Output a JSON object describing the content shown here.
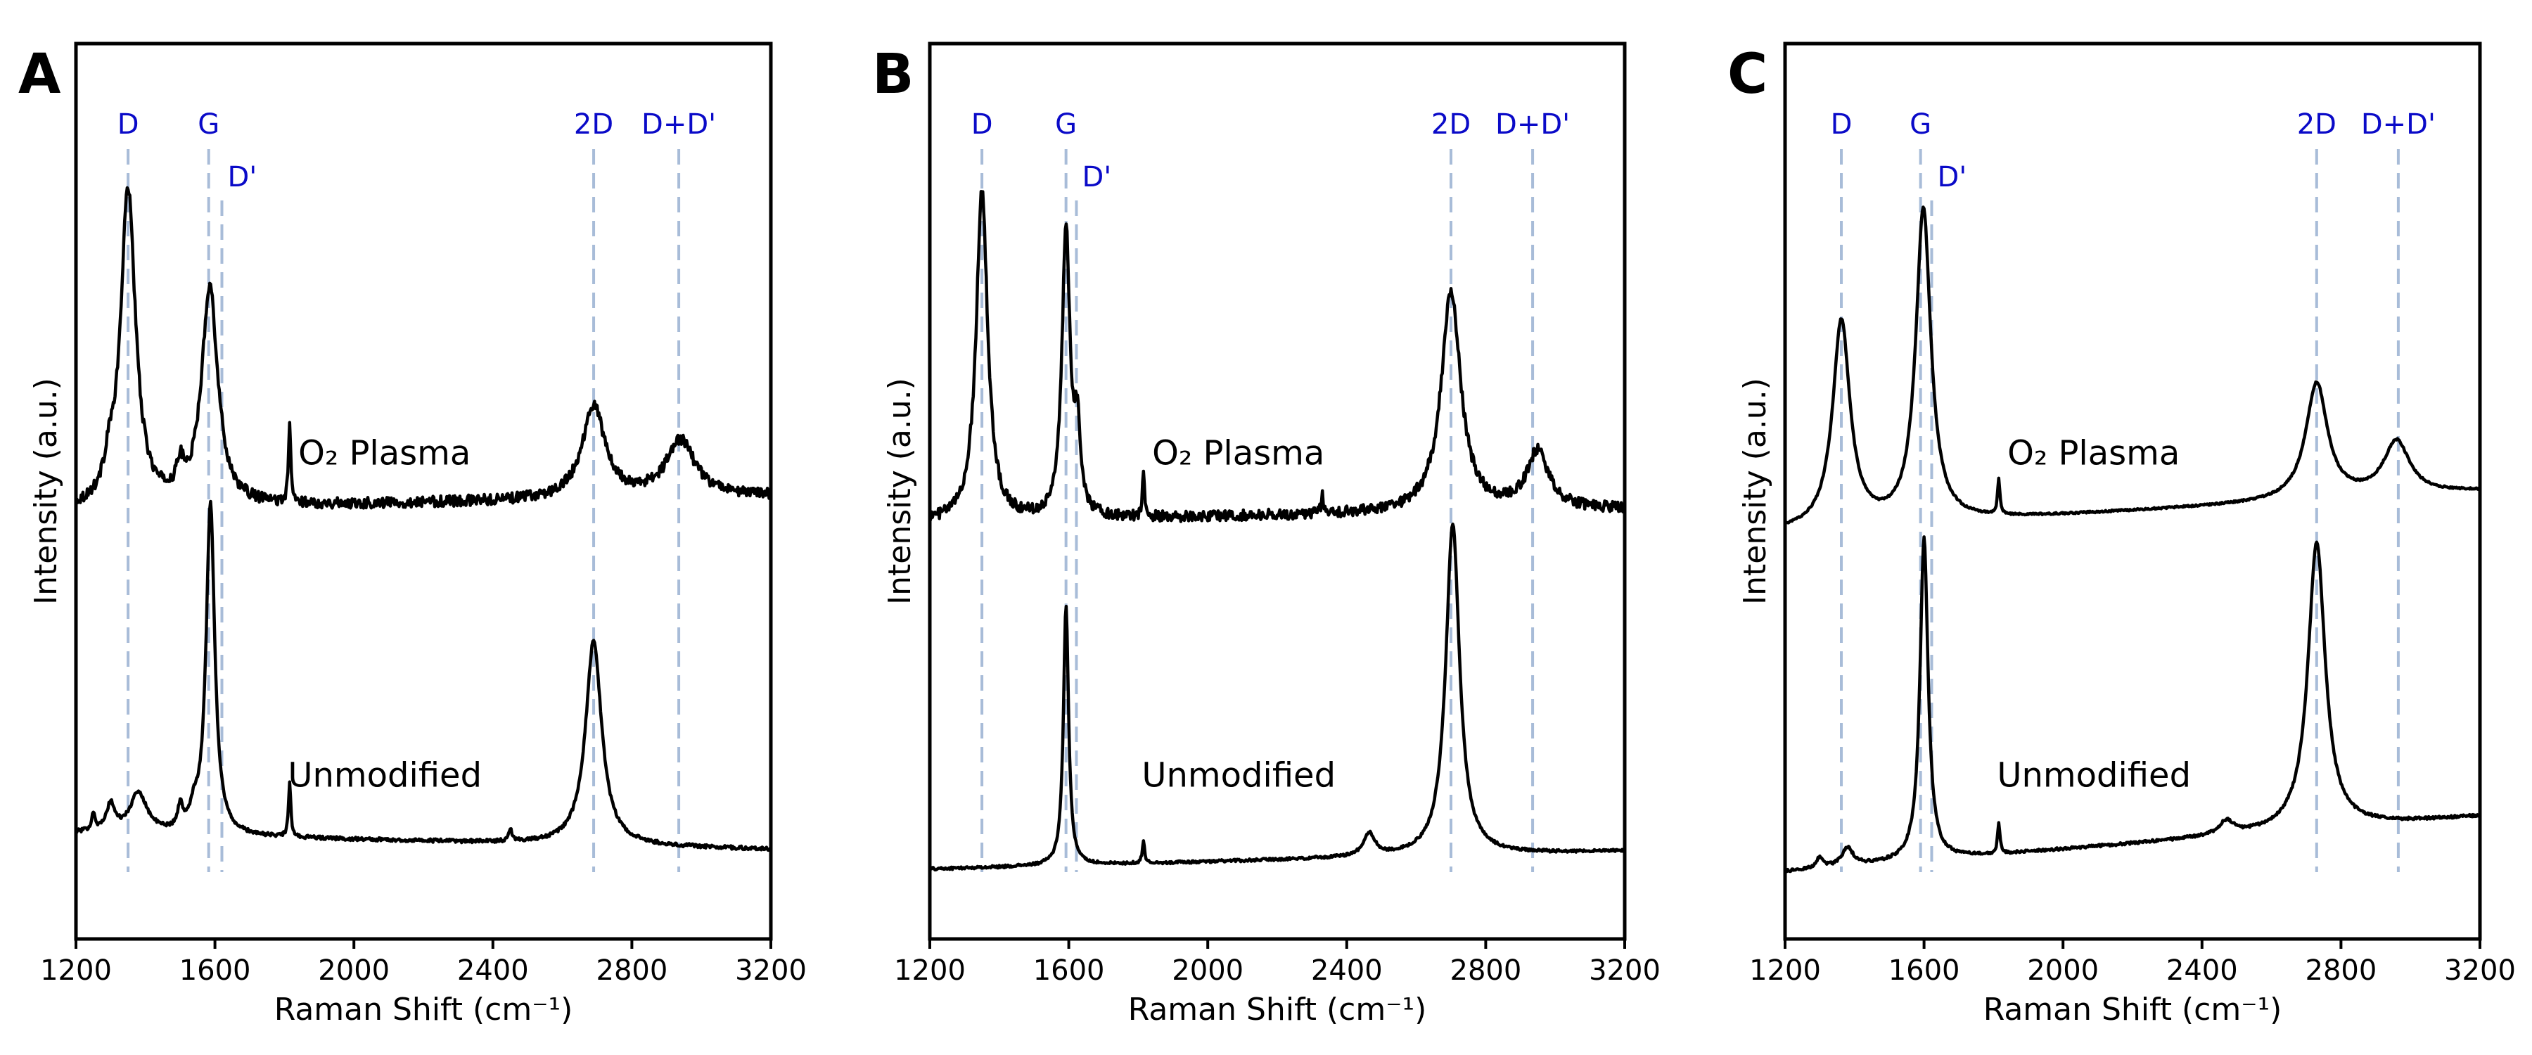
{
  "chart_data": [
    {
      "type": "line",
      "panel": "A",
      "xlabel": "Raman Shift (cm⁻¹)",
      "ylabel": "Intensity (a.u.)",
      "xlim": [
        1200,
        3200
      ],
      "xticks": [
        1200,
        1600,
        2000,
        2400,
        2800,
        3200
      ],
      "y_ticks_shown": false,
      "peak_markers": [
        {
          "name": "D",
          "x": 1350,
          "row": 1
        },
        {
          "name": "G",
          "x": 1582,
          "row": 1
        },
        {
          "name": "D'",
          "x": 1620,
          "row": 2
        },
        {
          "name": "2D",
          "x": 2690,
          "row": 1
        },
        {
          "name": "D+D'",
          "x": 2935,
          "row": 1
        }
      ],
      "series": [
        {
          "name": "O2 Plasma",
          "baseline": 0.478,
          "end": 0.495,
          "noise": 0.012,
          "peaks": [
            {
              "center": 1350,
              "width": 26,
              "height": 0.356
            },
            {
              "center": 1585,
              "width": 28,
              "height": 0.245
            },
            {
              "center": 1500,
              "width": 12,
              "height": 0.03
            },
            {
              "center": 1295,
              "width": 14,
              "height": 0.03
            },
            {
              "center": 1815,
              "width": 4,
              "height": 0.085
            },
            {
              "center": 2690,
              "width": 40,
              "height": 0.103
            },
            {
              "center": 2940,
              "width": 50,
              "height": 0.063
            }
          ]
        },
        {
          "name": "Unmodified",
          "baseline": 0.118,
          "end": 0.1,
          "noise": 0.004,
          "peaks": [
            {
              "center": 1587,
              "width": 15,
              "height": 0.37
            },
            {
              "center": 1540,
              "width": 14,
              "height": 0.02
            },
            {
              "center": 1380,
              "width": 30,
              "height": 0.045
            },
            {
              "center": 1300,
              "width": 15,
              "height": 0.03
            },
            {
              "center": 1250,
              "width": 6,
              "height": 0.02
            },
            {
              "center": 1500,
              "width": 8,
              "height": 0.025
            },
            {
              "center": 1815,
              "width": 4,
              "height": 0.06
            },
            {
              "center": 2450,
              "width": 6,
              "height": 0.014
            },
            {
              "center": 2690,
              "width": 28,
              "height": 0.228
            }
          ]
        }
      ],
      "annotations": [
        {
          "text": "O₂ Plasma",
          "x": 1840,
          "y": 0.53
        },
        {
          "text": "Unmodified",
          "x": 1810,
          "y": 0.17
        }
      ]
    },
    {
      "type": "line",
      "panel": "B",
      "xlabel": "Raman Shift (cm⁻¹)",
      "ylabel": "Intensity (a.u.)",
      "xlim": [
        1200,
        3200
      ],
      "xticks": [
        1200,
        1600,
        2000,
        2400,
        2800,
        3200
      ],
      "y_ticks_shown": false,
      "peak_markers": [
        {
          "name": "D",
          "x": 1350,
          "row": 1
        },
        {
          "name": "G",
          "x": 1592,
          "row": 1
        },
        {
          "name": "D'",
          "x": 1622,
          "row": 2
        },
        {
          "name": "2D",
          "x": 2700,
          "row": 1
        },
        {
          "name": "D+D'",
          "x": 2935,
          "row": 1
        }
      ],
      "series": [
        {
          "name": "O2 Plasma",
          "baseline": 0.465,
          "end": 0.48,
          "noise": 0.012,
          "peaks": [
            {
              "center": 1350,
              "width": 20,
              "height": 0.37
            },
            {
              "center": 1592,
              "width": 14,
              "height": 0.32
            },
            {
              "center": 1625,
              "width": 10,
              "height": 0.09
            },
            {
              "center": 1815,
              "width": 4,
              "height": 0.05
            },
            {
              "center": 2330,
              "width": 4,
              "height": 0.02
            },
            {
              "center": 2700,
              "width": 34,
              "height": 0.245
            },
            {
              "center": 2950,
              "width": 38,
              "height": 0.065
            }
          ]
        },
        {
          "name": "Unmodified",
          "baseline": 0.078,
          "end": 0.098,
          "noise": 0.003,
          "peaks": [
            {
              "center": 1592,
              "width": 9,
              "height": 0.29
            },
            {
              "center": 1815,
              "width": 4,
              "height": 0.025
            },
            {
              "center": 2465,
              "width": 20,
              "height": 0.025
            },
            {
              "center": 2705,
              "width": 24,
              "height": 0.37
            }
          ]
        }
      ],
      "annotations": [
        {
          "text": "O₂ Plasma",
          "x": 1840,
          "y": 0.53
        },
        {
          "text": "Unmodified",
          "x": 1810,
          "y": 0.17
        }
      ]
    },
    {
      "type": "line",
      "panel": "C",
      "xlabel": "Raman Shift (cm⁻¹)",
      "ylabel": "Intensity (a.u.)",
      "xlim": [
        1200,
        3200
      ],
      "xticks": [
        1200,
        1600,
        2000,
        2400,
        2800,
        3200
      ],
      "y_ticks_shown": false,
      "peak_markers": [
        {
          "name": "D",
          "x": 1362,
          "row": 1
        },
        {
          "name": "G",
          "x": 1590,
          "row": 1
        },
        {
          "name": "D'",
          "x": 1622,
          "row": 2
        },
        {
          "name": "2D",
          "x": 2730,
          "row": 1
        },
        {
          "name": "D+D'",
          "x": 2965,
          "row": 1
        }
      ],
      "series": [
        {
          "name": "O2 Plasma",
          "baseline": 0.455,
          "end": 0.5,
          "noise": 0.002,
          "peaks": [
            {
              "center": 1362,
              "width": 30,
              "height": 0.23
            },
            {
              "center": 1598,
              "width": 26,
              "height": 0.35
            },
            {
              "center": 1815,
              "width": 4,
              "height": 0.04
            },
            {
              "center": 2730,
              "width": 38,
              "height": 0.13
            },
            {
              "center": 2960,
              "width": 45,
              "height": 0.06
            }
          ]
        },
        {
          "name": "Unmodified",
          "baseline": 0.075,
          "end": 0.137,
          "noise": 0.003,
          "peaks": [
            {
              "center": 1380,
              "width": 20,
              "height": 0.02
            },
            {
              "center": 1300,
              "width": 12,
              "height": 0.012
            },
            {
              "center": 1600,
              "width": 14,
              "height": 0.36
            },
            {
              "center": 1815,
              "width": 4,
              "height": 0.035
            },
            {
              "center": 2470,
              "width": 25,
              "height": 0.015
            },
            {
              "center": 2730,
              "width": 30,
              "height": 0.32
            }
          ]
        }
      ],
      "annotations": [
        {
          "text": "O₂ Plasma",
          "x": 1840,
          "y": 0.53
        },
        {
          "text": "Unmodified",
          "x": 1810,
          "y": 0.17
        }
      ]
    }
  ],
  "colors": {
    "curve": "#000000",
    "marker_line": "#a8bcd8",
    "marker_text": "#0a0ac8"
  }
}
